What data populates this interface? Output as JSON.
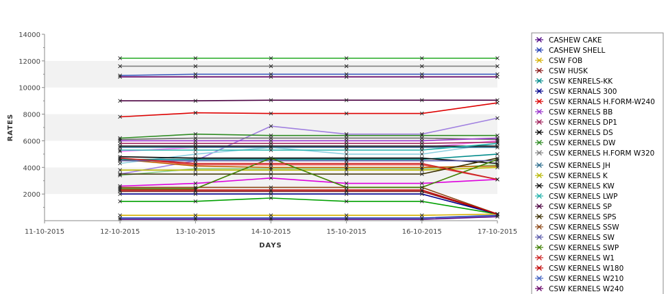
{
  "chart_data": {
    "type": "line",
    "title": "",
    "xlabel": "DAYS",
    "ylabel": "RATES",
    "x": [
      "11-10-2015",
      "12-10-2015",
      "13-10-2015",
      "14-10-2015",
      "15-10-2015",
      "16-10-2015",
      "17-10-2015"
    ],
    "ylim": [
      0,
      14000
    ],
    "yticks": [
      2000,
      4000,
      6000,
      8000,
      10000,
      12000,
      14000
    ],
    "grid": "alternating horizontal bands",
    "legend_position": "right",
    "legend_entries": [
      "CASHEW CAKE",
      "CASHEW SHELL",
      "CSW FOB",
      "CSW HUSK",
      "CSW KENRELS-KK",
      "CSW KERNALS 300",
      "CSW KERNALS H.FORM-W240",
      "CSW KERNELS BB",
      "CSW KERNELS DP1",
      "CSW KERNELS DS",
      "CSW KERNELS DW",
      "CSW KERNELS H.FORM W320",
      "CSW KERNELS JH",
      "CSW KERNELS K",
      "CSW KERNELS KW",
      "CSW KERNELS LWP",
      "CSW KERNELS SP",
      "CSW KERNELS SPS",
      "CSW KERNELS SSW",
      "CSW KERNELS SW",
      "CSW KERNELS SWP",
      "CSW KERNELS W1",
      "CSW KERNELS W180",
      "CSW KERNELS W210",
      "CSW KERNELS W240"
    ],
    "series": [
      {
        "name": "CASHEW CAKE",
        "color": "#4b0082",
        "values": [
          null,
          100,
          100,
          100,
          100,
          100,
          300
        ]
      },
      {
        "name": "CASHEW SHELL",
        "color": "#1e3cb4",
        "values": [
          null,
          200,
          200,
          200,
          200,
          200,
          400
        ]
      },
      {
        "name": "CSW FOB",
        "color": "#d4b000",
        "values": [
          null,
          400,
          400,
          400,
          400,
          400,
          500
        ]
      },
      {
        "name": "CSW HUSK",
        "color": "#8b1a1a",
        "values": [
          null,
          2200,
          2200,
          2200,
          2200,
          2200,
          500
        ]
      },
      {
        "name": "CSW KENRELS-KK",
        "color": "#008b8b",
        "values": [
          null,
          4600,
          4600,
          4600,
          4600,
          4600,
          5000
        ]
      },
      {
        "name": "CSW KERNALS 300",
        "color": "#00008b",
        "values": [
          null,
          2000,
          2000,
          2000,
          2000,
          2000,
          500
        ]
      },
      {
        "name": "CSW KERNALS H.FORM-W240",
        "color": "#dd0000",
        "values": [
          null,
          7800,
          8100,
          8050,
          8050,
          8050,
          8850
        ]
      },
      {
        "name": "CSW KERNELS BB",
        "color": "#9932cc",
        "values": [
          null,
          6000,
          6000,
          6000,
          6000,
          6000,
          6200
        ]
      },
      {
        "name": "CSW KERNELS DP1",
        "color": "#a0205a",
        "values": [
          null,
          5800,
          5800,
          5800,
          5800,
          5800,
          5900
        ]
      },
      {
        "name": "CSW KERNELS DS",
        "color": "#000000",
        "values": [
          null,
          4800,
          4700,
          4700,
          4700,
          4700,
          4300
        ]
      },
      {
        "name": "CSW KERNELS DW",
        "color": "#2e8b22",
        "values": [
          null,
          6200,
          6500,
          6400,
          6400,
          6400,
          6400
        ]
      },
      {
        "name": "CSW KERNELS H.FORM W320",
        "color": "#808080",
        "values": [
          null,
          11600,
          11600,
          11600,
          11600,
          11600,
          11600
        ]
      },
      {
        "name": "CSW KERNELS JH",
        "color": "#2f6f8f",
        "values": [
          null,
          5500,
          5500,
          5500,
          5500,
          5500,
          5500
        ]
      },
      {
        "name": "CSW KERNELS K",
        "color": "#b8b800",
        "values": [
          null,
          3800,
          3800,
          3800,
          3800,
          3800,
          4000
        ]
      },
      {
        "name": "CSW KERNELS KW",
        "color": "#111111",
        "values": [
          null,
          5600,
          5600,
          5600,
          5600,
          5600,
          5600
        ]
      },
      {
        "name": "CSW KERNELS LWP",
        "color": "#20b2aa",
        "values": [
          null,
          5300,
          5300,
          5300,
          5300,
          5300,
          5800
        ]
      },
      {
        "name": "CSW KERNELS SP",
        "color": "#4b0040",
        "values": [
          null,
          9000,
          9000,
          9050,
          9050,
          9050,
          9050
        ]
      },
      {
        "name": "CSW KERNELS SPS",
        "color": "#3b2f00",
        "values": [
          null,
          3500,
          3500,
          3500,
          3500,
          3500,
          4700
        ]
      },
      {
        "name": "CSW KERNELS SSW",
        "color": "#8b4513",
        "values": [
          null,
          2500,
          2500,
          2500,
          2500,
          2500,
          500
        ]
      },
      {
        "name": "CSW KERNELS SW",
        "color": "#5a5aaa",
        "values": [
          null,
          4500,
          4500,
          4500,
          4500,
          4500,
          4500
        ]
      },
      {
        "name": "CSW KERNELS SWP",
        "color": "#3f7f00",
        "values": [
          null,
          2400,
          2400,
          4700,
          2500,
          2500,
          4600
        ]
      },
      {
        "name": "CSW KERNELS W1",
        "color": "#cc2222",
        "values": [
          null,
          4700,
          4300,
          4300,
          4300,
          4300,
          3100
        ]
      },
      {
        "name": "CSW KERNELS W180",
        "color": "#c00000",
        "values": [
          null,
          2300,
          2300,
          2300,
          2300,
          2300,
          500
        ]
      },
      {
        "name": "CSW KERNELS W210",
        "color": "#4060c0",
        "values": [
          null,
          10900,
          11000,
          11000,
          11000,
          11000,
          11000
        ]
      },
      {
        "name": "CSW KERNELS W240",
        "color": "#660066",
        "values": [
          null,
          10800,
          10800,
          10800,
          10800,
          10800,
          10800
        ]
      }
    ],
    "extra_lines": [
      {
        "color": "#22aa22",
        "values": [
          null,
          12200,
          12200,
          12200,
          12200,
          12200,
          12200
        ]
      },
      {
        "color": "#dd00dd",
        "values": [
          null,
          2600,
          2800,
          3200,
          2800,
          2800,
          3100
        ]
      },
      {
        "color": "#00a000",
        "values": [
          null,
          1450,
          1450,
          1700,
          1450,
          1450,
          500
        ]
      },
      {
        "color": "#a080e0",
        "values": [
          null,
          3500,
          4500,
          7100,
          6500,
          6500,
          7700
        ]
      },
      {
        "color": "#90d0e0",
        "values": [
          null,
          4300,
          5000,
          5500,
          5000,
          5000,
          5800
        ]
      },
      {
        "color": "#666666",
        "values": [
          null,
          6100,
          6200,
          6200,
          6200,
          6200,
          6100
        ]
      },
      {
        "color": "#e04040",
        "values": [
          null,
          4700,
          4200,
          4200,
          4200,
          4200,
          3100
        ]
      },
      {
        "color": "#88cc88",
        "values": [
          null,
          3400,
          3900,
          3900,
          3900,
          3900,
          4200
        ]
      },
      {
        "color": "#ff80ff",
        "values": [
          null,
          5200,
          5500,
          5600,
          5500,
          5500,
          6000
        ]
      },
      {
        "color": "#c06000",
        "values": [
          null,
          4600,
          4100,
          4000,
          4000,
          4000,
          4100
        ]
      }
    ]
  }
}
